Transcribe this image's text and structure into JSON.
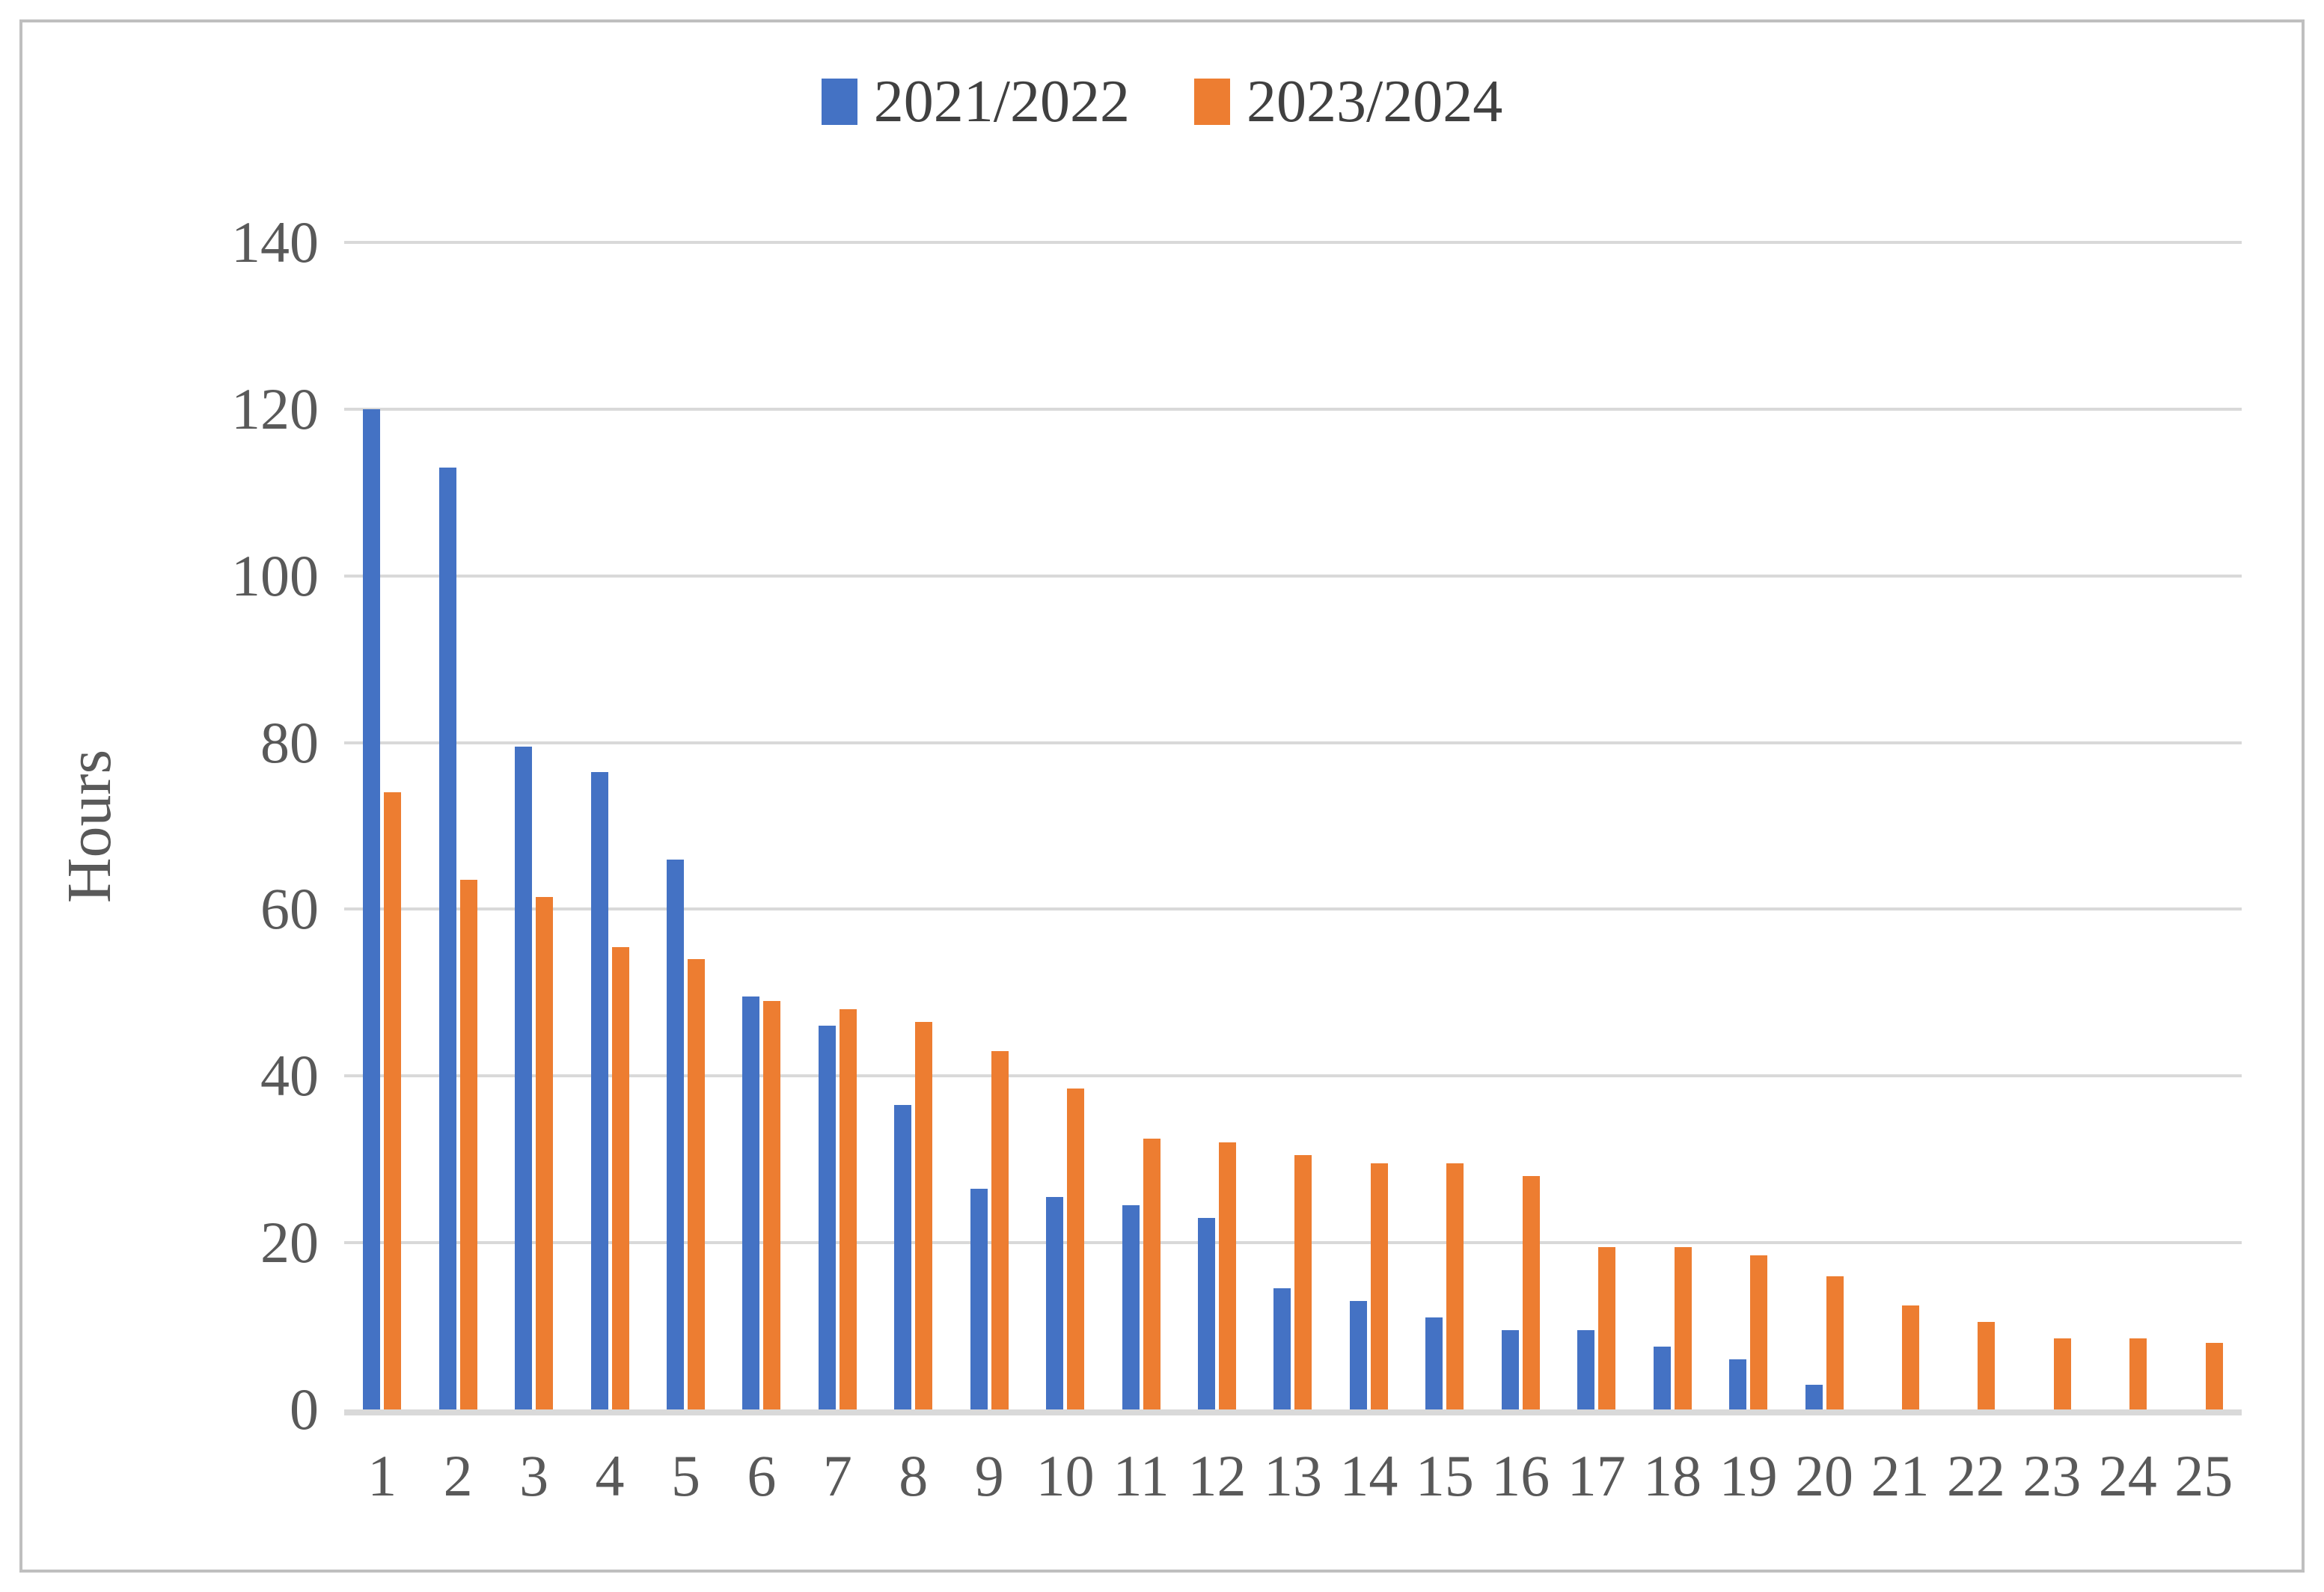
{
  "chart_data": {
    "type": "bar",
    "title": "",
    "xlabel": "",
    "ylabel": "Hours",
    "ylim": [
      0,
      140
    ],
    "y_ticks": [
      0,
      20,
      40,
      60,
      80,
      100,
      120,
      140
    ],
    "grid": "horizontal",
    "legend_position": "top-center",
    "categories": [
      1,
      2,
      3,
      4,
      5,
      6,
      7,
      8,
      9,
      10,
      11,
      12,
      13,
      14,
      15,
      16,
      17,
      18,
      19,
      20,
      21,
      22,
      23,
      24,
      25
    ],
    "series": [
      {
        "name": "2021/2022",
        "color": "#4472C4",
        "values": [
          120,
          113,
          79.5,
          76.5,
          66,
          49.5,
          46,
          36.5,
          26.5,
          25.5,
          24.5,
          23,
          14.5,
          13,
          11,
          9.5,
          9.5,
          7.5,
          6,
          3,
          null,
          null,
          null,
          null,
          null
        ]
      },
      {
        "name": "2023/2024",
        "color": "#ED7D31",
        "values": [
          74,
          63.5,
          61.5,
          55.5,
          54,
          49,
          48,
          46.5,
          43,
          38.5,
          32.5,
          32,
          30.5,
          29.5,
          29.5,
          28,
          19.5,
          19.5,
          18.5,
          16,
          12.5,
          10.5,
          8.5,
          8.5,
          8
        ]
      }
    ]
  },
  "colors": {
    "gridline": "#d9d9d9",
    "axis_line": "#d9d9d9",
    "tick_text": "#595959",
    "legend_text": "#404040",
    "figure_border": "#bfbfbf",
    "background": "#ffffff"
  }
}
